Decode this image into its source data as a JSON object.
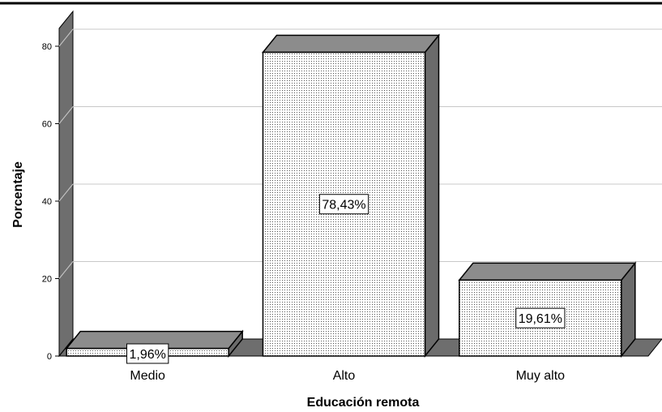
{
  "chart_data": {
    "type": "bar",
    "style": "3d",
    "categories": [
      "Medio",
      "Alto",
      "Muy alto"
    ],
    "values": [
      1.96,
      78.43,
      19.61
    ],
    "data_labels": [
      "1,96%",
      "78,43%",
      "19,61%"
    ],
    "xlabel": "Educación remota",
    "ylabel": "Porcentaje",
    "ylim": [
      0,
      80
    ],
    "yticks": [
      0,
      20,
      40,
      60,
      80
    ],
    "grid": true,
    "colors": {
      "bar_face": "#ffffff",
      "bar_pattern": "#555555",
      "bar_top": "#8c8c8c",
      "bar_side": "#6b6b6b",
      "wall": "#ffffff",
      "wall_side": "#6e6e6e",
      "floor": "#6e6e6e",
      "grid": "#c8c8c8",
      "frame": "#000000"
    }
  }
}
